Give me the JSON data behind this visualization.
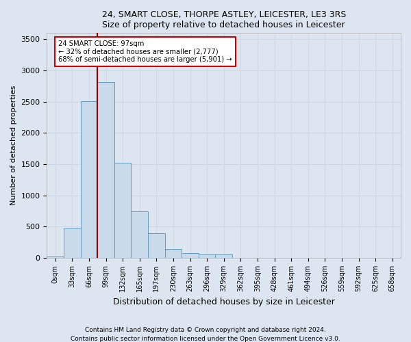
{
  "title1": "24, SMART CLOSE, THORPE ASTLEY, LEICESTER, LE3 3RS",
  "title2": "Size of property relative to detached houses in Leicester",
  "xlabel": "Distribution of detached houses by size in Leicester",
  "ylabel": "Number of detached properties",
  "bin_labels": [
    "0sqm",
    "33sqm",
    "66sqm",
    "99sqm",
    "132sqm",
    "165sqm",
    "197sqm",
    "230sqm",
    "263sqm",
    "296sqm",
    "329sqm",
    "362sqm",
    "395sqm",
    "428sqm",
    "461sqm",
    "494sqm",
    "526sqm",
    "559sqm",
    "592sqm",
    "625sqm",
    "658sqm"
  ],
  "bar_heights": [
    25,
    475,
    2510,
    2820,
    1520,
    750,
    390,
    140,
    75,
    55,
    55,
    0,
    0,
    0,
    0,
    0,
    0,
    0,
    0,
    0,
    0
  ],
  "bar_color": "#c9daea",
  "bar_edge_color": "#6699bb",
  "vline_color": "#990000",
  "annotation_title": "24 SMART CLOSE: 97sqm",
  "annotation_line1": "← 32% of detached houses are smaller (2,777)",
  "annotation_line2": "68% of semi-detached houses are larger (5,901) →",
  "annotation_box_color": "#cc0000",
  "ylim": [
    0,
    3600
  ],
  "yticks": [
    0,
    500,
    1000,
    1500,
    2000,
    2500,
    3000,
    3500
  ],
  "grid_color": "#d0d8e8",
  "bg_color": "#dde6f0",
  "footer1": "Contains HM Land Registry data © Crown copyright and database right 2024.",
  "footer2": "Contains public sector information licensed under the Open Government Licence v3.0."
}
